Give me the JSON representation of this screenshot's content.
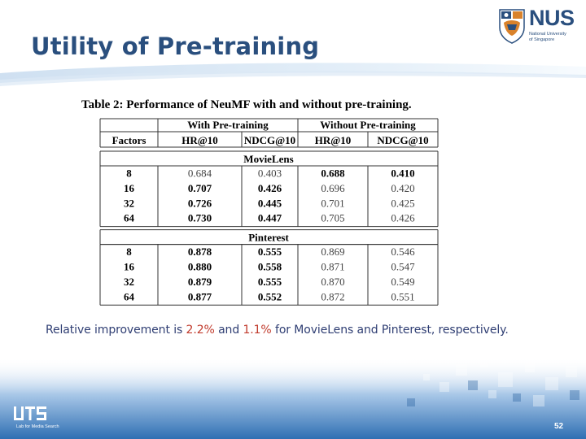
{
  "slide": {
    "title": "Utility of Pre-training",
    "relative_text": {
      "before": "Relative improvement is ",
      "ml_value": "2.2%",
      "and": " and ",
      "pin_value": "1.1%",
      "after": " for MovieLens and Pinterest, respectively."
    },
    "page_number": "52"
  },
  "logo": {
    "name": "NUS",
    "line1": "National University",
    "line2": "of Singapore"
  },
  "footer_logo": {
    "name": "UTS",
    "sub": "Lab for Media Search"
  },
  "table": {
    "caption": "Table 2: Performance of NeuMF with and without pre-training.",
    "group_headers": [
      "With Pre-training",
      "Without Pre-training"
    ],
    "col_headers": [
      "Factors",
      "HR@10",
      "NDCG@10",
      "HR@10",
      "NDCG@10"
    ],
    "sections": [
      {
        "name": "MovieLens",
        "rows": [
          {
            "cells": [
              "8",
              "0.684",
              "0.403",
              "0.688",
              "0.410"
            ],
            "bold": [
              true,
              false,
              false,
              true,
              true
            ]
          },
          {
            "cells": [
              "16",
              "0.707",
              "0.426",
              "0.696",
              "0.420"
            ],
            "bold": [
              true,
              true,
              true,
              false,
              false
            ]
          },
          {
            "cells": [
              "32",
              "0.726",
              "0.445",
              "0.701",
              "0.425"
            ],
            "bold": [
              true,
              true,
              true,
              false,
              false
            ]
          },
          {
            "cells": [
              "64",
              "0.730",
              "0.447",
              "0.705",
              "0.426"
            ],
            "bold": [
              true,
              true,
              true,
              false,
              false
            ]
          }
        ]
      },
      {
        "name": "Pinterest",
        "rows": [
          {
            "cells": [
              "8",
              "0.878",
              "0.555",
              "0.869",
              "0.546"
            ],
            "bold": [
              true,
              true,
              true,
              false,
              false
            ]
          },
          {
            "cells": [
              "16",
              "0.880",
              "0.558",
              "0.871",
              "0.547"
            ],
            "bold": [
              true,
              true,
              true,
              false,
              false
            ]
          },
          {
            "cells": [
              "32",
              "0.879",
              "0.555",
              "0.870",
              "0.549"
            ],
            "bold": [
              true,
              true,
              true,
              false,
              false
            ]
          },
          {
            "cells": [
              "64",
              "0.877",
              "0.552",
              "0.872",
              "0.551"
            ],
            "bold": [
              true,
              true,
              true,
              false,
              false
            ]
          }
        ]
      }
    ]
  },
  "colors": {
    "title": "#2a4f7e",
    "text": "#2f3e73",
    "highlight": "#c0392b",
    "footer_blue": "#3a7bbf"
  }
}
